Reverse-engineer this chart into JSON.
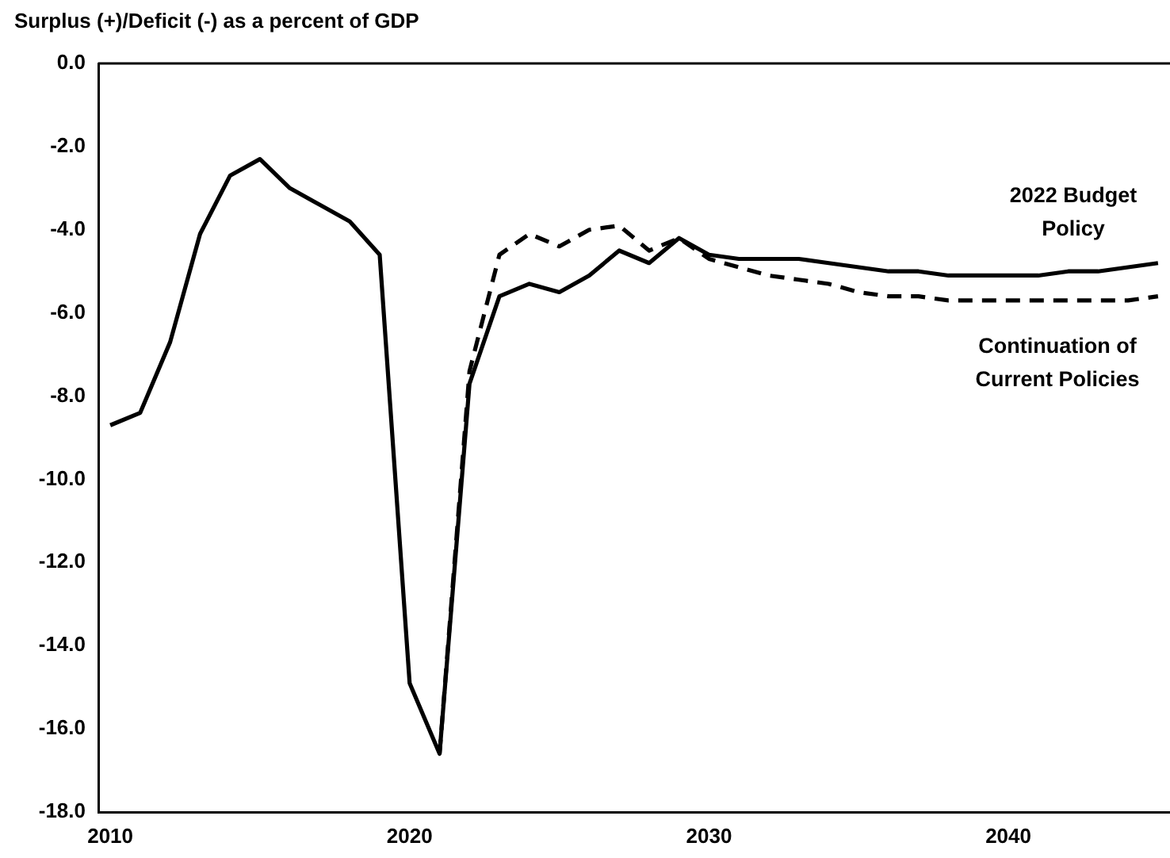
{
  "chart_data": {
    "type": "line",
    "ylabel": "Surplus (+)/Deficit (-) as a percent of GDP",
    "xlim": [
      2009.6,
      2045.4
    ],
    "xticks": [
      2010,
      2020,
      2030,
      2040
    ],
    "ylim": [
      -18,
      0
    ],
    "yticks": [
      {
        "value": 0,
        "label": "0.0"
      },
      {
        "value": -2,
        "label": "-2.0"
      },
      {
        "value": -4,
        "label": "-4.0"
      },
      {
        "value": -6,
        "label": "-6.0"
      },
      {
        "value": -8,
        "label": "-8.0"
      },
      {
        "value": -10,
        "label": "-10.0"
      },
      {
        "value": -12,
        "label": "-12.0"
      },
      {
        "value": -14,
        "label": "-14.0"
      },
      {
        "value": -16,
        "label": "-16.0"
      },
      {
        "value": -18,
        "label": "-18.0"
      }
    ],
    "grid": false,
    "legend": false,
    "marker": "none",
    "ref_lines": [
      {
        "axis": "y",
        "value": 0,
        "color": "#000000"
      }
    ],
    "series": [
      {
        "name": "2022 Budget Policy",
        "color": "#000000",
        "line_style": "solid",
        "x": [
          2010,
          2011,
          2012,
          2013,
          2014,
          2015,
          2016,
          2017,
          2018,
          2019,
          2020,
          2021,
          2022,
          2023,
          2024,
          2025,
          2026,
          2027,
          2028,
          2029,
          2030,
          2031,
          2032,
          2033,
          2034,
          2035,
          2036,
          2037,
          2038,
          2039,
          2040,
          2041,
          2042,
          2043,
          2044,
          2045
        ],
        "values": [
          -8.7,
          -8.4,
          -6.7,
          -4.1,
          -2.7,
          -2.3,
          -3.0,
          -3.4,
          -3.8,
          -4.6,
          -14.9,
          -16.6,
          -7.7,
          -5.6,
          -5.3,
          -5.5,
          -5.1,
          -4.5,
          -4.8,
          -4.2,
          -4.6,
          -4.7,
          -4.7,
          -4.7,
          -4.8,
          -4.9,
          -5.0,
          -5.0,
          -5.1,
          -5.1,
          -5.1,
          -5.1,
          -5.0,
          -5.0,
          -4.9,
          -4.8
        ]
      },
      {
        "name": "Continuation of Current Policies",
        "color": "#000000",
        "line_style": "dashed",
        "x": [
          2021,
          2022,
          2023,
          2024,
          2025,
          2026,
          2027,
          2028,
          2029,
          2030,
          2031,
          2032,
          2033,
          2034,
          2035,
          2036,
          2037,
          2038,
          2039,
          2040,
          2041,
          2042,
          2043,
          2044,
          2045
        ],
        "values": [
          -16.6,
          -7.4,
          -4.6,
          -4.1,
          -4.4,
          -4.0,
          -3.9,
          -4.5,
          -4.2,
          -4.7,
          -4.9,
          -5.1,
          -5.2,
          -5.3,
          -5.5,
          -5.6,
          -5.6,
          -5.7,
          -5.7,
          -5.7,
          -5.7,
          -5.7,
          -5.7,
          -5.7,
          -5.6
        ]
      }
    ]
  }
}
